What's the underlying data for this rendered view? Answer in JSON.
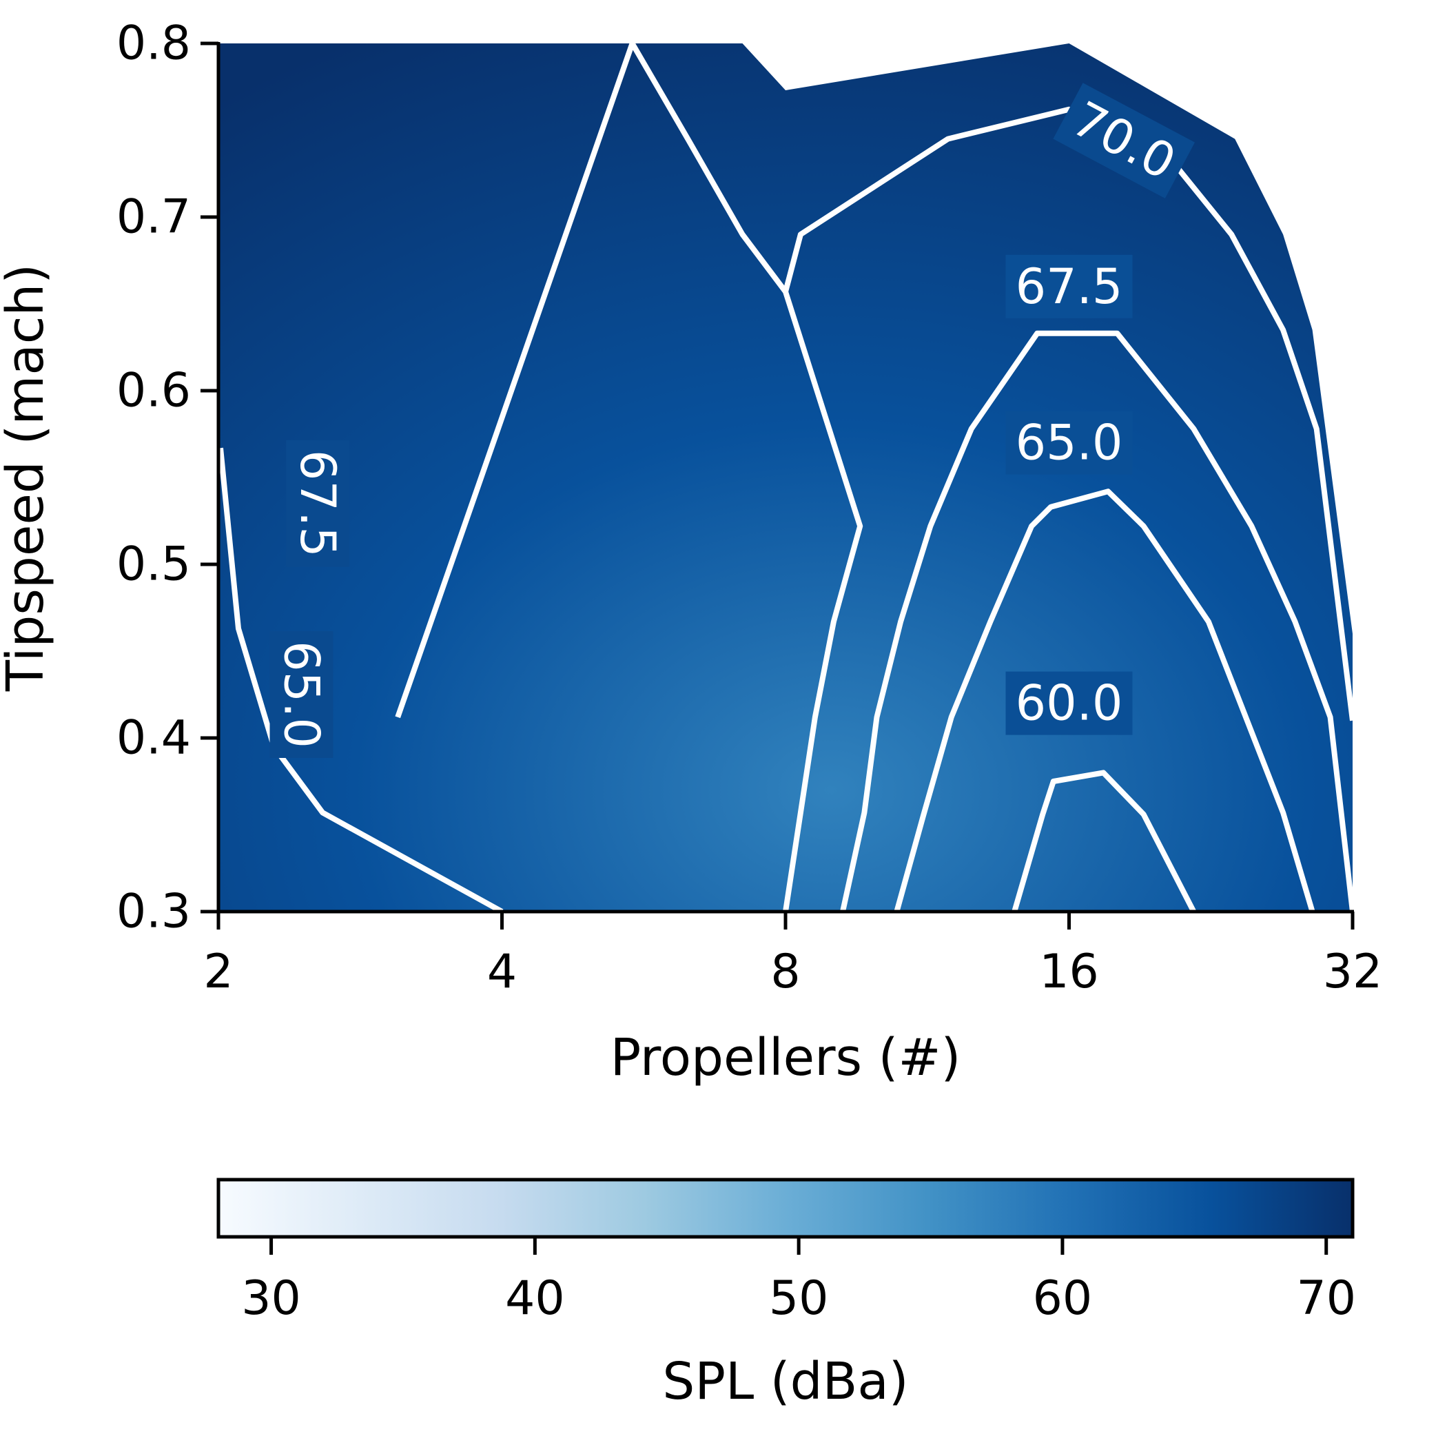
{
  "chart_data": {
    "type": "heatmap",
    "subtype": "filled contour with contour lines",
    "xlabel": "Propellers (#)",
    "ylabel": "Tipspeed (mach)",
    "x_scale": "log2",
    "xlim": [
      2,
      32
    ],
    "ylim": [
      0.3,
      0.8
    ],
    "x_ticks": [
      2,
      4,
      8,
      16,
      32
    ],
    "x_tick_labels": [
      "2",
      "4",
      "8",
      "16",
      "32"
    ],
    "y_ticks": [
      0.3,
      0.4,
      0.5,
      0.6,
      0.7,
      0.8
    ],
    "y_tick_labels": [
      "0.3",
      "0.4",
      "0.5",
      "0.6",
      "0.7",
      "0.8"
    ],
    "grid": false,
    "colormap": "Blues",
    "colormap_stops": [
      "#f7fbff",
      "#deebf7",
      "#c6dbef",
      "#9ecae1",
      "#6baed6",
      "#4292c6",
      "#2171b5",
      "#08519c",
      "#08306b"
    ],
    "feasible_region_boundary": [
      {
        "x": 2,
        "y": 0.3
      },
      {
        "x": 2,
        "y": 0.8
      },
      {
        "x": 7.2,
        "y": 0.8
      },
      {
        "x": 8,
        "y": 0.773
      },
      {
        "x": 16,
        "y": 0.8
      },
      {
        "x": 24,
        "y": 0.745
      },
      {
        "x": 27,
        "y": 0.69
      },
      {
        "x": 29,
        "y": 0.635
      },
      {
        "x": 32,
        "y": 0.46
      },
      {
        "x": 32,
        "y": 0.3
      }
    ],
    "contours": [
      {
        "level": 60.0,
        "label": "60.0",
        "points": [
          {
            "x": 14.0,
            "y": 0.3
          },
          {
            "x": 15.0,
            "y": 0.356
          },
          {
            "x": 15.4,
            "y": 0.375
          },
          {
            "x": 17.4,
            "y": 0.38
          },
          {
            "x": 19.2,
            "y": 0.356
          },
          {
            "x": 21.7,
            "y": 0.3
          }
        ],
        "label_position": {
          "x": 16,
          "y": 0.42,
          "rotation": 0
        }
      },
      {
        "level": 65.0,
        "label": "65.0",
        "points": [
          {
            "x": 10.5,
            "y": 0.3
          },
          {
            "x": 11.2,
            "y": 0.355
          },
          {
            "x": 12.0,
            "y": 0.412
          },
          {
            "x": 13.2,
            "y": 0.467
          },
          {
            "x": 14.6,
            "y": 0.522
          },
          {
            "x": 15.3,
            "y": 0.533
          },
          {
            "x": 17.6,
            "y": 0.542
          },
          {
            "x": 19.2,
            "y": 0.522
          },
          {
            "x": 22.5,
            "y": 0.467
          },
          {
            "x": 27.0,
            "y": 0.357
          },
          {
            "x": 29.0,
            "y": 0.3
          }
        ],
        "label_position": {
          "x": 16,
          "y": 0.57,
          "rotation": 0
        }
      },
      {
        "level": 65.0,
        "label": "65.0",
        "points": [
          {
            "x": 2.01,
            "y": 0.567
          },
          {
            "x": 2.1,
            "y": 0.463
          },
          {
            "x": 2.29,
            "y": 0.395
          },
          {
            "x": 2.58,
            "y": 0.357
          },
          {
            "x": 4.0,
            "y": 0.3
          }
        ],
        "label_position": {
          "x": 2.45,
          "y": 0.425,
          "rotation": 90
        }
      },
      {
        "level": 67.5,
        "label": "67.5",
        "points": [
          {
            "x": 9.2,
            "y": 0.3
          },
          {
            "x": 9.7,
            "y": 0.357
          },
          {
            "x": 10.0,
            "y": 0.412
          },
          {
            "x": 10.6,
            "y": 0.467
          },
          {
            "x": 11.4,
            "y": 0.522
          },
          {
            "x": 12.6,
            "y": 0.578
          },
          {
            "x": 14.8,
            "y": 0.633
          },
          {
            "x": 18.0,
            "y": 0.633
          },
          {
            "x": 21.7,
            "y": 0.578
          },
          {
            "x": 25.0,
            "y": 0.522
          },
          {
            "x": 27.8,
            "y": 0.467
          },
          {
            "x": 30.3,
            "y": 0.412
          },
          {
            "x": 32.0,
            "y": 0.3
          }
        ],
        "label_position": {
          "x": 16,
          "y": 0.66,
          "rotation": 0
        }
      },
      {
        "level": 67.5,
        "label": "67.5",
        "points": [
          {
            "x": 8.0,
            "y": 0.3
          },
          {
            "x": 8.3,
            "y": 0.357
          },
          {
            "x": 8.6,
            "y": 0.412
          },
          {
            "x": 9.0,
            "y": 0.467
          },
          {
            "x": 9.6,
            "y": 0.522
          },
          {
            "x": 8.0,
            "y": 0.657
          },
          {
            "x": 7.2,
            "y": 0.69
          },
          {
            "x": 6.3,
            "y": 0.745
          },
          {
            "x": 5.5,
            "y": 0.8
          },
          {
            "x": 3.1,
            "y": 0.412
          }
        ],
        "label_position": {
          "x": 2.55,
          "y": 0.535,
          "rotation": 90
        }
      },
      {
        "level": 70.0,
        "label": "70.0",
        "points": [
          {
            "x": 8.0,
            "y": 0.657
          },
          {
            "x": 8.3,
            "y": 0.69
          },
          {
            "x": 11.9,
            "y": 0.745
          },
          {
            "x": 16.0,
            "y": 0.762
          },
          {
            "x": 19.5,
            "y": 0.748
          },
          {
            "x": 23.8,
            "y": 0.69
          },
          {
            "x": 27.0,
            "y": 0.635
          },
          {
            "x": 29.3,
            "y": 0.578
          },
          {
            "x": 32.0,
            "y": 0.41
          }
        ],
        "label_position": {
          "x": 18.3,
          "y": 0.744,
          "rotation": 28
        }
      }
    ],
    "colorbar": {
      "label": "SPL (dBa)",
      "orientation": "horizontal",
      "range": [
        28,
        71
      ],
      "ticks": [
        30,
        40,
        50,
        60,
        70
      ],
      "tick_labels": [
        "30",
        "40",
        "50",
        "60",
        "70"
      ]
    }
  }
}
